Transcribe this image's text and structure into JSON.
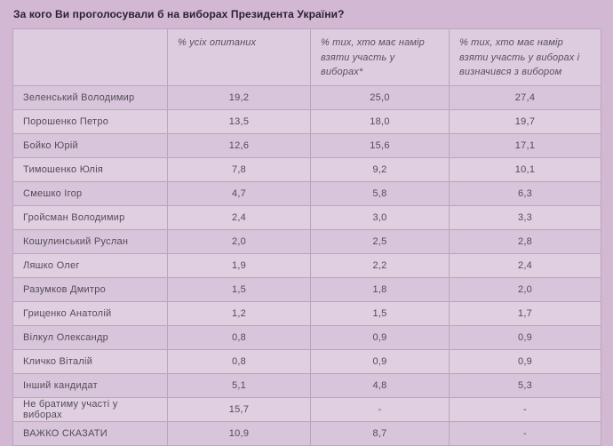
{
  "title": "За кого Ви проголосували б на виборах Президента України?",
  "colors": {
    "page_background": "#d3b8d4",
    "header_cell_background": "#ddccdf",
    "row_odd_background": "#d9c5db",
    "row_even_background": "#dfcfe1",
    "border": "#b8a6ba",
    "title_text": "#282230",
    "cell_text": "#524c57"
  },
  "table": {
    "headers": [
      "",
      "% усіх опитаних",
      "% тих, хто має намір взяти участь у виборах*",
      "% тих, хто має намір взяти участь у виборах і визначився з вибором"
    ],
    "rows": [
      {
        "label": "Зеленський Володимир",
        "values": [
          "19,2",
          "25,0",
          "27,4"
        ]
      },
      {
        "label": "Порошенко Петро",
        "values": [
          "13,5",
          "18,0",
          "19,7"
        ]
      },
      {
        "label": "Бойко Юрій",
        "values": [
          "12,6",
          "15,6",
          "17,1"
        ]
      },
      {
        "label": "Тимошенко Юлія",
        "values": [
          "7,8",
          "9,2",
          "10,1"
        ]
      },
      {
        "label": "Смешко Ігор",
        "values": [
          "4,7",
          "5,8",
          "6,3"
        ]
      },
      {
        "label": "Гройсман Володимир",
        "values": [
          "2,4",
          "3,0",
          "3,3"
        ]
      },
      {
        "label": "Кошулинський Руслан",
        "values": [
          "2,0",
          "2,5",
          "2,8"
        ]
      },
      {
        "label": "Ляшко Олег",
        "values": [
          "1,9",
          "2,2",
          "2,4"
        ]
      },
      {
        "label": "Разумков Дмитро",
        "values": [
          "1,5",
          "1,8",
          "2,0"
        ]
      },
      {
        "label": "Гриценко Анатолій",
        "values": [
          "1,2",
          "1,5",
          "1,7"
        ]
      },
      {
        "label": "Вілкул Олександр",
        "values": [
          "0,8",
          "0,9",
          "0,9"
        ]
      },
      {
        "label": "Кличко Віталій",
        "values": [
          "0,8",
          "0,9",
          "0,9"
        ]
      },
      {
        "label": "Інший кандидат",
        "values": [
          "5,1",
          "4,8",
          "5,3"
        ]
      },
      {
        "label": "Не братиму участі у виборах",
        "values": [
          "15,7",
          "-",
          "-"
        ]
      },
      {
        "label": "ВАЖКО СКАЗАТИ",
        "values": [
          "10,9",
          "8,7",
          "-"
        ]
      }
    ]
  },
  "chart_data": {
    "type": "table",
    "title": "За кого Ви проголосували б на виборах Президента України?",
    "columns": [
      "% усіх опитаних",
      "% тих, хто має намір взяти участь у виборах*",
      "% тих, хто має намір взяти участь у виборах і визначився з вибором"
    ],
    "rows": [
      {
        "label": "Зеленський Володимир",
        "values": [
          19.2,
          25.0,
          27.4
        ]
      },
      {
        "label": "Порошенко Петро",
        "values": [
          13.5,
          18.0,
          19.7
        ]
      },
      {
        "label": "Бойко Юрій",
        "values": [
          12.6,
          15.6,
          17.1
        ]
      },
      {
        "label": "Тимошенко Юлія",
        "values": [
          7.8,
          9.2,
          10.1
        ]
      },
      {
        "label": "Смешко Ігор",
        "values": [
          4.7,
          5.8,
          6.3
        ]
      },
      {
        "label": "Гройсман Володимир",
        "values": [
          2.4,
          3.0,
          3.3
        ]
      },
      {
        "label": "Кошулинський Руслан",
        "values": [
          2.0,
          2.5,
          2.8
        ]
      },
      {
        "label": "Ляшко Олег",
        "values": [
          1.9,
          2.2,
          2.4
        ]
      },
      {
        "label": "Разумков Дмитро",
        "values": [
          1.5,
          1.8,
          2.0
        ]
      },
      {
        "label": "Гриценко Анатолій",
        "values": [
          1.2,
          1.5,
          1.7
        ]
      },
      {
        "label": "Вілкул Олександр",
        "values": [
          0.8,
          0.9,
          0.9
        ]
      },
      {
        "label": "Кличко Віталій",
        "values": [
          0.8,
          0.9,
          0.9
        ]
      },
      {
        "label": "Інший кандидат",
        "values": [
          5.1,
          4.8,
          5.3
        ]
      },
      {
        "label": "Не братиму участі у виборах",
        "values": [
          15.7,
          null,
          null
        ]
      },
      {
        "label": "ВАЖКО СКАЗАТИ",
        "values": [
          10.9,
          8.7,
          null
        ]
      }
    ]
  }
}
